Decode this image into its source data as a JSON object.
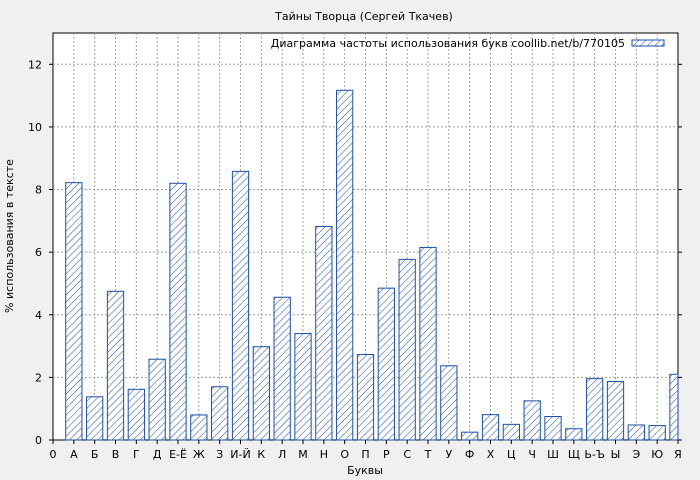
{
  "chart_data": {
    "type": "bar",
    "title": "Тайны Творца (Сергей Ткачев)",
    "legend": "Диаграмма частоты использования букв coollib.net/b/770105",
    "legend_position": "top-right",
    "xlabel": "Буквы",
    "ylabel": "% использования в тексте",
    "ylim": [
      0,
      13
    ],
    "yticks": [
      0,
      2,
      4,
      6,
      8,
      10,
      12
    ],
    "grid": true,
    "x_tick_labels": [
      "0",
      "А",
      "Б",
      "В",
      "Г",
      "Д",
      "Е-Ё",
      "Ж",
      "З",
      "И-Й",
      "К",
      "Л",
      "М",
      "Н",
      "О",
      "П",
      "Р",
      "С",
      "Т",
      "У",
      "Ф",
      "Х",
      "Ц",
      "Ч",
      "Ш",
      "Щ",
      "Ь-Ъ",
      "Ы",
      "Э",
      "Ю",
      "Я"
    ],
    "categories": [
      "А",
      "Б",
      "В",
      "Г",
      "Д",
      "Е-Ё",
      "Ж",
      "З",
      "И-Й",
      "К",
      "Л",
      "М",
      "Н",
      "О",
      "П",
      "Р",
      "С",
      "Т",
      "У",
      "Ф",
      "Х",
      "Ц",
      "Ч",
      "Ш",
      "Щ",
      "Ь-Ъ",
      "Ы",
      "Э",
      "Ю",
      "Я"
    ],
    "values": [
      8.22,
      1.38,
      4.75,
      1.62,
      2.58,
      8.2,
      0.8,
      1.7,
      8.58,
      2.98,
      4.56,
      3.4,
      6.82,
      11.17,
      2.73,
      4.85,
      5.77,
      6.15,
      2.37,
      0.25,
      0.81,
      0.5,
      1.25,
      0.75,
      0.36,
      1.96,
      1.87,
      0.48,
      0.46,
      2.1
    ],
    "colors": {
      "bar_stroke": "#1a4fa8",
      "hatch": "#1a4fa8",
      "bar_fill": "#ffffff",
      "grid": "#a0a0a0"
    }
  }
}
